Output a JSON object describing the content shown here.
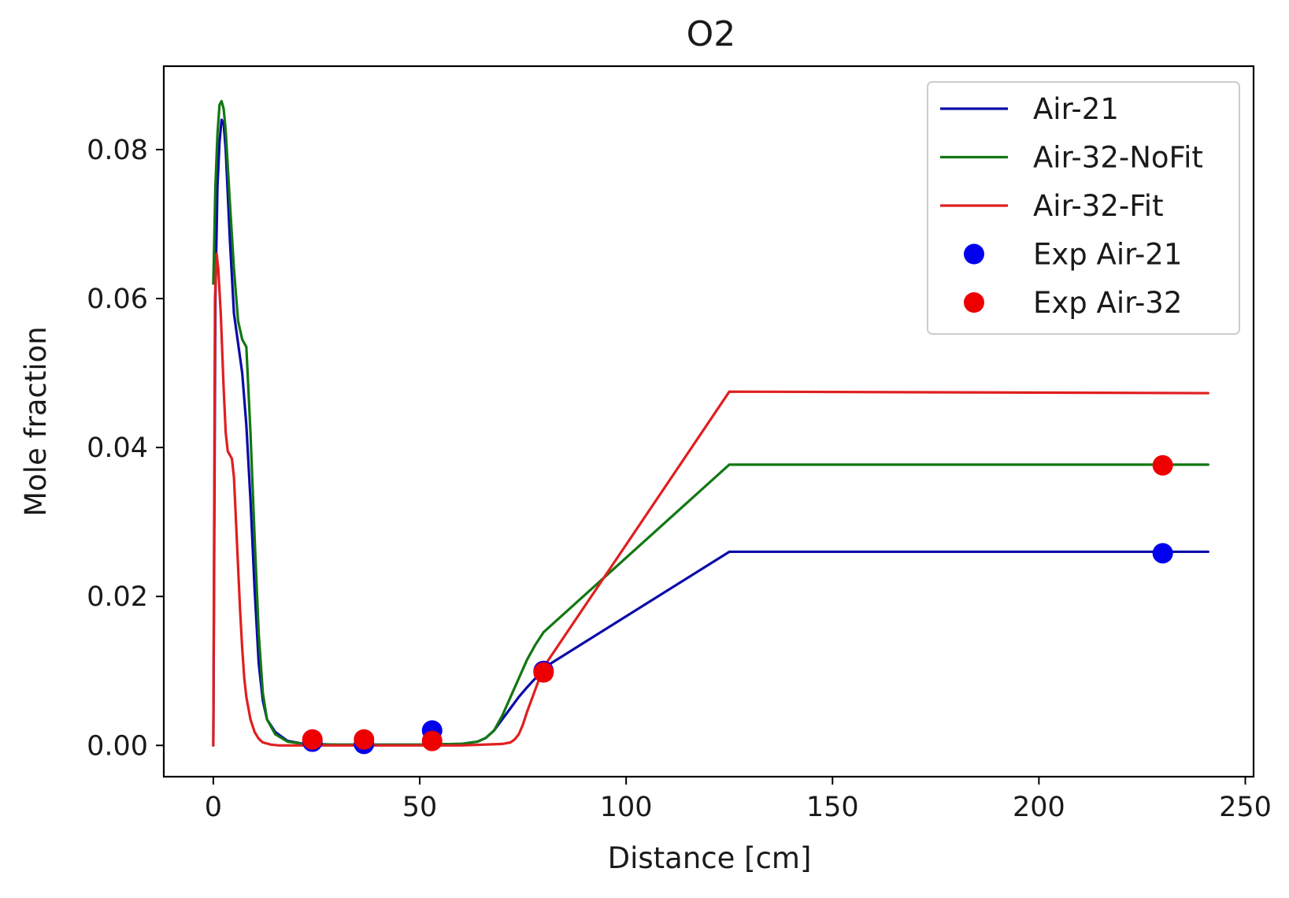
{
  "chart_data": {
    "type": "line",
    "title": "O2",
    "xlabel": "Distance [cm]",
    "ylabel": "Mole fraction",
    "xlim": [
      -12,
      252
    ],
    "ylim": [
      -0.0042,
      0.0912
    ],
    "xticks": [
      0,
      50,
      100,
      150,
      200,
      250
    ],
    "xtick_labels": [
      "0",
      "50",
      "100",
      "150",
      "200",
      "250"
    ],
    "yticks": [
      0.0,
      0.02,
      0.04,
      0.06,
      0.08
    ],
    "ytick_labels": [
      "0.00",
      "0.02",
      "0.04",
      "0.06",
      "0.08"
    ],
    "grid": false,
    "legend_position": "top-right",
    "series": [
      {
        "name": "Air-21",
        "kind": "line",
        "color": "#0a0aa8",
        "x": [
          0,
          0.5,
          1,
          1.5,
          2,
          2.5,
          3,
          4,
          5,
          6,
          7,
          8,
          9,
          10,
          11,
          12,
          13,
          15,
          18,
          22,
          30,
          40,
          50,
          60,
          64,
          66,
          68,
          70,
          72,
          74,
          76,
          78,
          80,
          125,
          241
        ],
        "y": [
          0.0,
          0.06,
          0.075,
          0.081,
          0.084,
          0.0835,
          0.08,
          0.068,
          0.058,
          0.054,
          0.05,
          0.043,
          0.033,
          0.021,
          0.011,
          0.006,
          0.0035,
          0.0018,
          0.0006,
          0.0002,
          0.0001,
          0.0001,
          0.0001,
          0.0002,
          0.0005,
          0.001,
          0.002,
          0.0035,
          0.005,
          0.0065,
          0.0078,
          0.009,
          0.0104,
          0.026,
          0.026
        ]
      },
      {
        "name": "Air-32-NoFit",
        "kind": "line",
        "color": "#127712",
        "x": [
          0,
          0.5,
          1,
          1.5,
          2,
          2.5,
          3,
          4,
          5,
          6,
          7,
          8,
          9,
          10,
          11,
          12,
          13,
          15,
          18,
          22,
          30,
          40,
          50,
          60,
          64,
          66,
          68,
          70,
          72,
          74,
          76,
          78,
          80,
          125,
          241
        ],
        "y": [
          0.062,
          0.075,
          0.082,
          0.086,
          0.0865,
          0.0855,
          0.0825,
          0.073,
          0.064,
          0.057,
          0.0545,
          0.0535,
          0.042,
          0.028,
          0.015,
          0.007,
          0.0035,
          0.0015,
          0.0005,
          0.0002,
          0.0001,
          0.0001,
          0.0001,
          0.0002,
          0.0005,
          0.001,
          0.002,
          0.004,
          0.0065,
          0.009,
          0.0115,
          0.0135,
          0.0152,
          0.0377,
          0.0377
        ]
      },
      {
        "name": "Air-32-Fit",
        "kind": "line",
        "color": "#e01f1f",
        "x": [
          0,
          0.4,
          0.8,
          1.2,
          1.8,
          2.5,
          3,
          3.5,
          4,
          4.5,
          5,
          5.5,
          6,
          6.5,
          7,
          7.5,
          8,
          9,
          10,
          11,
          12,
          14,
          16,
          20,
          30,
          40,
          50,
          60,
          70,
          72,
          73,
          74,
          75,
          76,
          78,
          80,
          125,
          241
        ],
        "y": [
          0.0,
          0.06,
          0.066,
          0.064,
          0.058,
          0.048,
          0.042,
          0.0395,
          0.039,
          0.0385,
          0.036,
          0.03,
          0.024,
          0.018,
          0.013,
          0.009,
          0.0065,
          0.0035,
          0.0018,
          0.0009,
          0.0004,
          0.0001,
          0.0,
          0.0,
          0.0,
          0.0,
          0.0,
          0.0,
          0.0002,
          0.0004,
          0.0008,
          0.0015,
          0.0028,
          0.0045,
          0.0075,
          0.0105,
          0.0475,
          0.0473
        ]
      },
      {
        "name": "Exp Air-21",
        "kind": "points",
        "color": "#0000ee",
        "x": [
          24,
          36.5,
          53,
          80,
          230
        ],
        "y": [
          0.0005,
          0.0002,
          0.002,
          0.01,
          0.0258
        ]
      },
      {
        "name": "Exp Air-32",
        "kind": "points",
        "color": "#ee0000",
        "x": [
          24,
          36.5,
          53,
          80,
          230
        ],
        "y": [
          0.0008,
          0.0008,
          0.0006,
          0.0098,
          0.0376
        ]
      }
    ]
  }
}
